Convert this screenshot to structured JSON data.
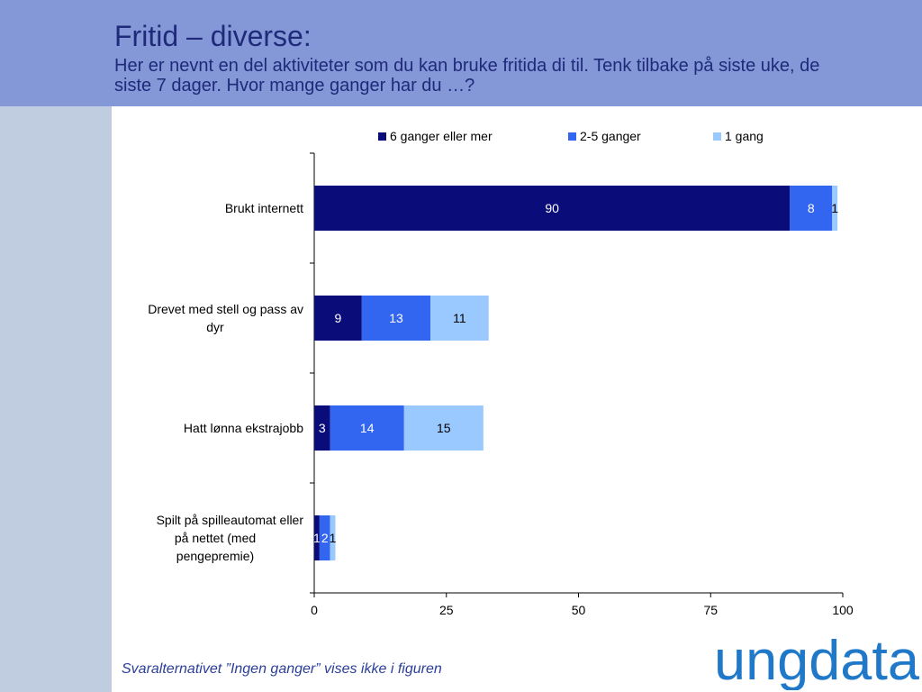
{
  "slide": {
    "title": "Fritid – diverse:",
    "subtitle": "Her er nevnt en del aktiviteter som du kan bruke fritida di til. Tenk tilbake på siste uke, de siste 7 dager. Hvor mange ganger har du …?",
    "footnote": "Svaralternativet ”Ingen ganger” vises ikke i figuren",
    "logo_text": "ungdata"
  },
  "chart_data": {
    "type": "bar",
    "orientation": "horizontal",
    "stacked": true,
    "categories": [
      [
        "Brukt internett"
      ],
      [
        "Drevet med stell og pass av",
        "dyr"
      ],
      [
        "Hatt lønna ekstrajobb"
      ],
      [
        "Spilt på spilleautomat eller",
        "på nettet (med",
        "pengepremie)"
      ]
    ],
    "series": [
      {
        "name": "6 ganger eller mer",
        "color": "#0a0c7a",
        "values": [
          90,
          9,
          3,
          1
        ]
      },
      {
        "name": "2-5 ganger",
        "color": "#3366f0",
        "values": [
          8,
          13,
          14,
          2
        ]
      },
      {
        "name": "1 gang",
        "color": "#99c9ff",
        "values": [
          1,
          11,
          15,
          1
        ]
      }
    ],
    "data_labels": [
      [
        "90",
        "9",
        "3",
        "1"
      ],
      [
        "8",
        "13",
        "14",
        "2"
      ],
      [
        "1",
        "11",
        "15",
        "1"
      ]
    ],
    "xlim": [
      0,
      100
    ],
    "xticks": [
      0,
      25,
      50,
      75,
      100
    ],
    "grid": false,
    "legend_position": "top"
  }
}
